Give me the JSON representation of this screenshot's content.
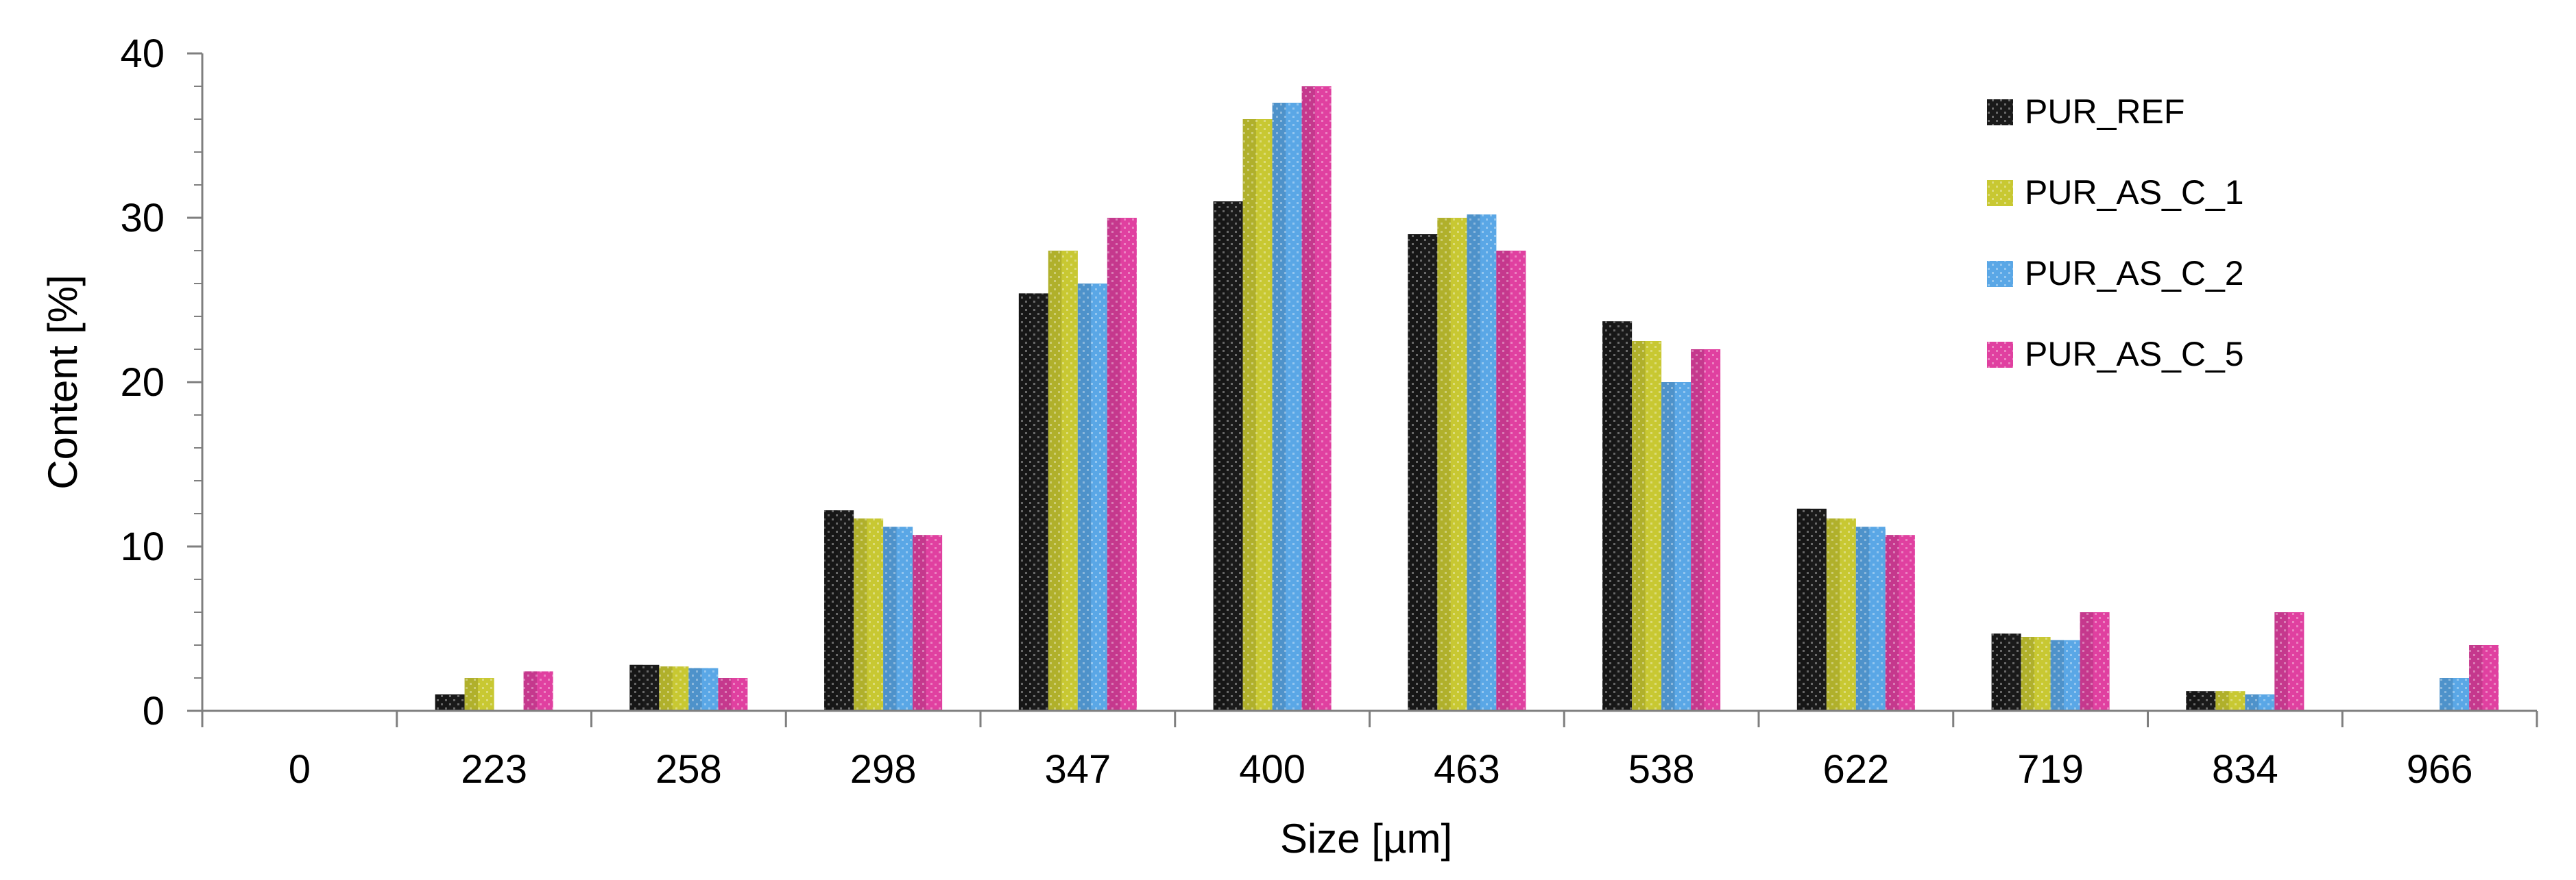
{
  "chart_data": {
    "type": "bar",
    "title": "",
    "xlabel": "Size [µm]",
    "ylabel": "Content [%]",
    "ylim": [
      0,
      40
    ],
    "yticks": [
      "0",
      "10",
      "20",
      "30",
      "40"
    ],
    "grid": false,
    "legend_position": "top-right",
    "categories": [
      "0",
      "223",
      "258",
      "298",
      "347",
      "400",
      "463",
      "538",
      "622",
      "719",
      "834",
      "966"
    ],
    "series": [
      {
        "name": "PUR_REF",
        "color": "#1a1a1a",
        "values": [
          0,
          1.0,
          2.8,
          12.2,
          25.4,
          31.0,
          29.0,
          23.7,
          12.3,
          4.7,
          1.2,
          0
        ]
      },
      {
        "name": "PUR_AS_C_1",
        "color": "#c8c832",
        "values": [
          0,
          2.0,
          2.7,
          11.7,
          28.0,
          36.0,
          30.0,
          22.5,
          11.7,
          4.5,
          1.2,
          0
        ]
      },
      {
        "name": "PUR_AS_C_2",
        "color": "#5aa7e6",
        "values": [
          0,
          0,
          2.6,
          11.2,
          26.0,
          37.0,
          30.2,
          20.0,
          11.2,
          4.3,
          1.0,
          2.0
        ]
      },
      {
        "name": "PUR_AS_C_5",
        "color": "#e040a0",
        "values": [
          0,
          2.4,
          2.0,
          10.7,
          30.0,
          38.0,
          28.0,
          22.0,
          10.7,
          6.0,
          6.0,
          4.0
        ]
      }
    ]
  }
}
